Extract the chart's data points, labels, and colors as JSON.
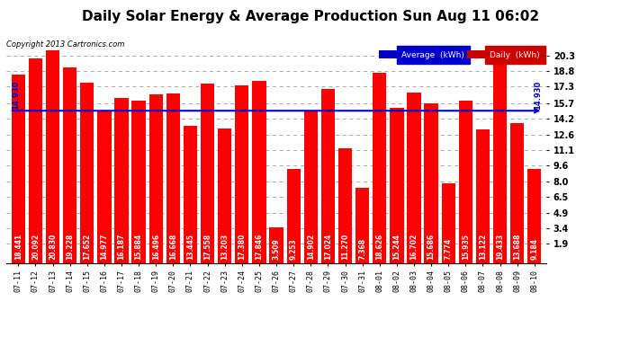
{
  "title": "Daily Solar Energy & Average Production Sun Aug 11 06:02",
  "copyright": "Copyright 2013 Cartronics.com",
  "average_value": 14.93,
  "average_label": "14.930",
  "bar_color": "#ff0000",
  "average_line_color": "#0000cd",
  "background_color": "#ffffff",
  "plot_bg_color": "#ffffff",
  "grid_color": "#aaaaaa",
  "categories": [
    "07-11",
    "07-12",
    "07-13",
    "07-14",
    "07-15",
    "07-16",
    "07-17",
    "07-18",
    "07-19",
    "07-20",
    "07-21",
    "07-22",
    "07-23",
    "07-24",
    "07-25",
    "07-26",
    "07-27",
    "07-28",
    "07-29",
    "07-30",
    "07-31",
    "08-01",
    "08-02",
    "08-03",
    "08-04",
    "08-05",
    "08-06",
    "08-07",
    "08-08",
    "08-09",
    "08-10"
  ],
  "values": [
    18.441,
    20.092,
    20.83,
    19.228,
    17.652,
    14.977,
    16.187,
    15.884,
    16.496,
    16.668,
    13.445,
    17.558,
    13.203,
    17.38,
    17.846,
    3.509,
    9.253,
    14.902,
    17.024,
    11.27,
    7.368,
    18.626,
    15.244,
    16.702,
    15.686,
    7.774,
    15.935,
    13.122,
    19.433,
    13.688,
    9.184
  ],
  "yticks": [
    1.9,
    3.4,
    4.9,
    6.5,
    8.0,
    9.6,
    11.1,
    12.6,
    14.2,
    15.7,
    17.3,
    18.8,
    20.3
  ],
  "legend_avg_text": "Average  (kWh)",
  "legend_daily_text": "Daily  (kWh)",
  "legend_avg_bg": "#0000cc",
  "legend_daily_bg": "#cc0000",
  "title_fontsize": 11,
  "bar_label_fontsize": 5.5,
  "ymin": 0,
  "ymax": 21.5
}
